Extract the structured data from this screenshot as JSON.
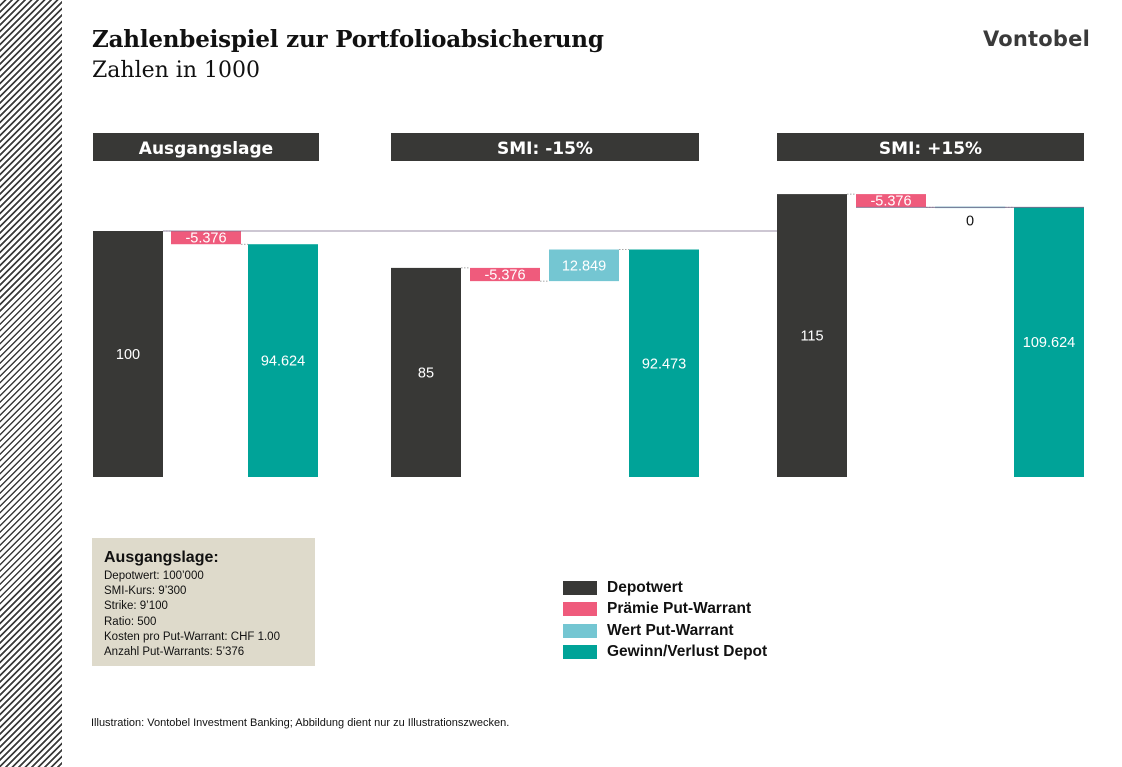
{
  "header": {
    "title": "Zahlenbeispiel zur Portfolioabsicherung",
    "subtitle": "Zahlen in 1000",
    "logo": "Vontobel"
  },
  "colors": {
    "depot": "#383836",
    "praemie": "#ef5b7c",
    "wert": "#74c6d2",
    "gewinn": "#00a398",
    "header_bar": "#383836"
  },
  "chart_data": {
    "type": "bar",
    "subtype": "waterfall",
    "ylim": [
      0,
      115
    ],
    "panels": [
      {
        "header": "Ausgangslage",
        "bars": [
          {
            "series": "Depotwert",
            "value": 100,
            "label": "100"
          },
          {
            "series": "Prämie Put-Warrant",
            "value": -5.376,
            "label": "-5.376"
          },
          {
            "series": "Gewinn/Verlust Depot",
            "value": 94.624,
            "label": "94.624"
          }
        ]
      },
      {
        "header": "SMI: -15%",
        "bars": [
          {
            "series": "Depotwert",
            "value": 85,
            "label": "85"
          },
          {
            "series": "Prämie Put-Warrant",
            "value": -5.376,
            "label": "-5.376"
          },
          {
            "series": "Wert Put-Warrant",
            "value": 12.849,
            "label": "12.849"
          },
          {
            "series": "Gewinn/Verlust Depot",
            "value": 92.473,
            "label": "92.473"
          }
        ]
      },
      {
        "header": "SMI: +15%",
        "bars": [
          {
            "series": "Depotwert",
            "value": 115,
            "label": "115"
          },
          {
            "series": "Prämie Put-Warrant",
            "value": -5.376,
            "label": "-5.376"
          },
          {
            "series": "Wert Put-Warrant",
            "value": 0,
            "label": "0"
          },
          {
            "series": "Gewinn/Verlust Depot",
            "value": 109.624,
            "label": "109.624"
          }
        ]
      }
    ],
    "reference_line": 100,
    "legend": [
      "Depotwert",
      "Prämie Put-Warrant",
      "Wert Put-Warrant",
      "Gewinn/Verlust Depot"
    ],
    "legend_position": "bottom-center"
  },
  "infobox": {
    "title": "Ausgangslage:",
    "lines": [
      "Depotwert:  100’000",
      "SMI-Kurs:  9’300",
      "Strike:  9’100",
      "Ratio: 500",
      "Kosten pro Put-Warrant:  CHF 1.00",
      "Anzahl Put-Warrants:  5’376"
    ]
  },
  "legend": {
    "items": [
      "Depotwert",
      "Prämie Put-Warrant",
      "Wert Put-Warrant",
      "Gewinn/Verlust Depot"
    ]
  },
  "footnote": "Illustration: Vontobel Investment Banking; Abbildung dient nur zu Illustrationszwecken."
}
